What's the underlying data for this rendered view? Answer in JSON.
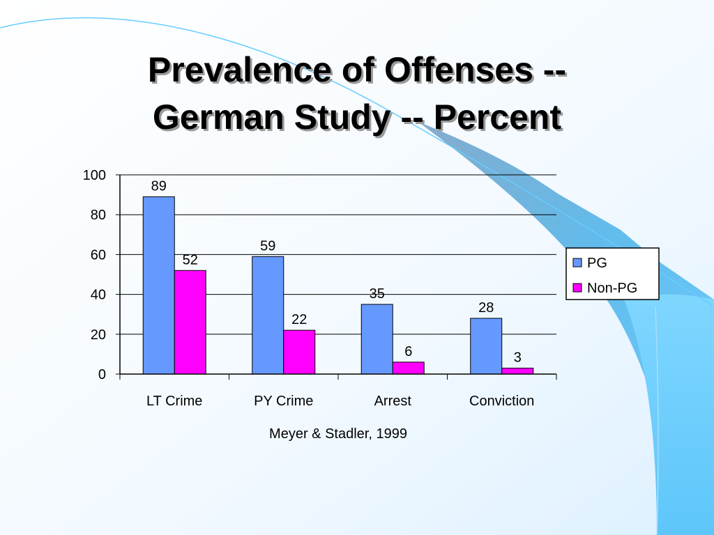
{
  "slide": {
    "title_line1": "Prevalence of Offenses --",
    "title_line2": "German Study -- Percent"
  },
  "colors": {
    "pg": "#6699FF",
    "non_pg": "#FF00FF",
    "background_top": "#FFFFFF",
    "background_accent": "#66CCFF"
  },
  "chart_data": {
    "type": "bar",
    "title": "",
    "xlabel": "Meyer & Stadler, 1999",
    "ylabel": "",
    "categories": [
      "LT Crime",
      "PY Crime",
      "Arrest",
      "Conviction"
    ],
    "series": [
      {
        "name": "PG",
        "values": [
          89,
          59,
          35,
          28
        ],
        "color": "#6699FF"
      },
      {
        "name": "Non-PG",
        "values": [
          52,
          22,
          6,
          3
        ],
        "color": "#FF00FF"
      }
    ],
    "ylim": [
      0,
      100
    ],
    "yticks": [
      0,
      20,
      40,
      60,
      80,
      100
    ],
    "grid": true,
    "legend": "right"
  }
}
